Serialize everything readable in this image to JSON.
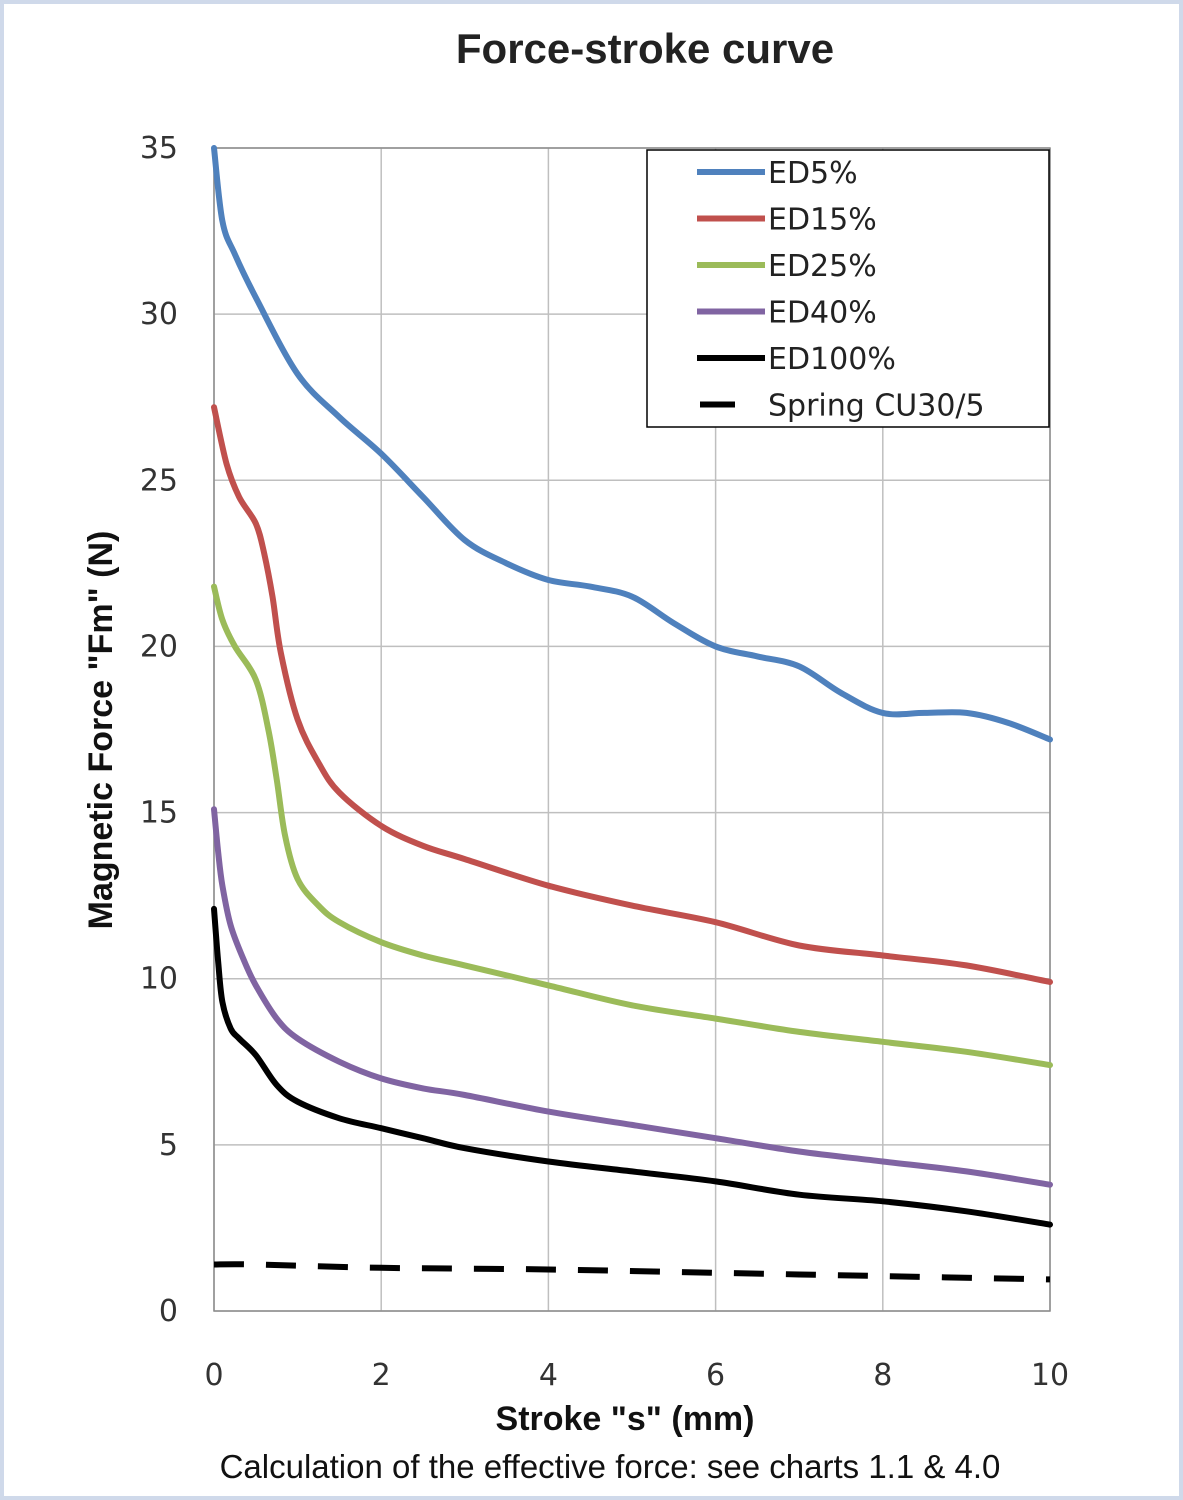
{
  "chart_data": {
    "type": "line",
    "title": "Force-stroke curve",
    "xlabel": "Stroke \"s\" (mm)",
    "ylabel": "Magnetic Force \"Fm\" (N)",
    "footnote": "Calculation of the effective force: see charts 1.1 & 4.0",
    "xlim": [
      0,
      10
    ],
    "ylim": [
      0,
      35
    ],
    "xticks": [
      "0",
      "2",
      "4",
      "6",
      "8",
      "10"
    ],
    "yticks": [
      "0",
      "5",
      "10",
      "15",
      "20",
      "25",
      "30",
      "35"
    ],
    "grid": true,
    "legend_position": "top-right",
    "series": [
      {
        "name": "ED5%",
        "color": "#4f81bd",
        "dash": false,
        "x": [
          0,
          0.1,
          0.25,
          0.5,
          1,
          1.5,
          2,
          2.5,
          3,
          3.5,
          4,
          4.5,
          5,
          5.5,
          6,
          6.5,
          7,
          7.5,
          8,
          8.5,
          9,
          9.5,
          10
        ],
        "y": [
          35,
          32.8,
          31.8,
          30.5,
          28.2,
          26.9,
          25.8,
          24.5,
          23.2,
          22.5,
          22.0,
          21.8,
          21.5,
          20.7,
          20.0,
          19.7,
          19.4,
          18.6,
          18.0,
          18.0,
          18.0,
          17.7,
          17.2
        ]
      },
      {
        "name": "ED15%",
        "color": "#c0504d",
        "dash": false,
        "x": [
          0,
          0.15,
          0.3,
          0.5,
          0.6,
          0.7,
          0.8,
          1,
          1.25,
          1.5,
          2,
          2.5,
          3,
          4,
          5,
          6,
          7,
          8,
          9,
          10
        ],
        "y": [
          27.2,
          25.5,
          24.5,
          23.7,
          22.8,
          21.5,
          19.8,
          17.8,
          16.5,
          15.6,
          14.6,
          14.0,
          13.6,
          12.8,
          12.2,
          11.7,
          11.0,
          10.7,
          10.4,
          9.9
        ]
      },
      {
        "name": "ED25%",
        "color": "#9bbb59",
        "dash": false,
        "x": [
          0,
          0.1,
          0.25,
          0.5,
          0.65,
          0.75,
          0.85,
          1,
          1.25,
          1.5,
          2,
          2.5,
          3,
          4,
          5,
          6,
          7,
          8,
          9,
          10
        ],
        "y": [
          21.8,
          20.8,
          20.0,
          19.0,
          17.5,
          16.0,
          14.3,
          13.0,
          12.2,
          11.7,
          11.1,
          10.7,
          10.4,
          9.8,
          9.2,
          8.8,
          8.4,
          8.1,
          7.8,
          7.4
        ]
      },
      {
        "name": "ED40%",
        "color": "#8064a2",
        "dash": false,
        "x": [
          0,
          0.05,
          0.1,
          0.2,
          0.35,
          0.5,
          0.75,
          1,
          1.5,
          2,
          2.5,
          3,
          4,
          5,
          6,
          7,
          8,
          9,
          10
        ],
        "y": [
          15.1,
          13.8,
          12.8,
          11.6,
          10.6,
          9.8,
          8.8,
          8.2,
          7.5,
          7.0,
          6.7,
          6.5,
          6.0,
          5.6,
          5.2,
          4.8,
          4.5,
          4.2,
          3.8
        ]
      },
      {
        "name": "ED100%",
        "color": "#000000",
        "dash": false,
        "x": [
          0,
          0.05,
          0.1,
          0.2,
          0.3,
          0.5,
          0.75,
          1,
          1.5,
          2,
          2.5,
          3,
          4,
          5,
          6,
          7,
          8,
          9,
          10
        ],
        "y": [
          12.1,
          10.5,
          9.3,
          8.5,
          8.2,
          7.7,
          6.8,
          6.3,
          5.8,
          5.5,
          5.2,
          4.9,
          4.5,
          4.2,
          3.9,
          3.5,
          3.3,
          3.0,
          2.6
        ]
      },
      {
        "name": "Spring CU30/5",
        "color": "#000000",
        "dash": true,
        "x": [
          0,
          0.5,
          2,
          4,
          6,
          8,
          10
        ],
        "y": [
          1.4,
          1.4,
          1.3,
          1.25,
          1.15,
          1.05,
          0.95
        ]
      }
    ]
  }
}
